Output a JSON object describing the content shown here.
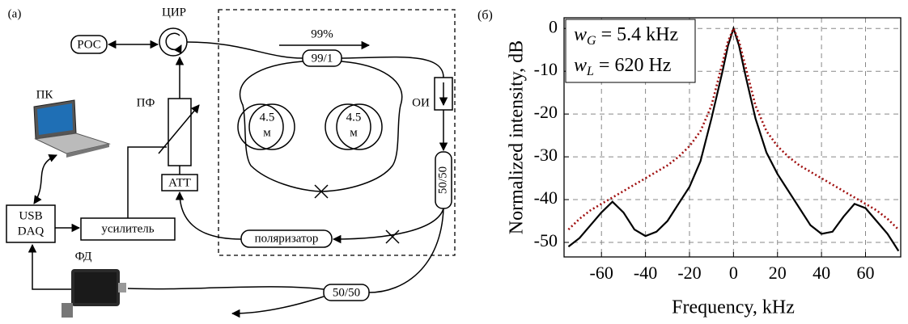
{
  "diagram": {
    "panel_label": "(a)",
    "ros": "РОС",
    "circulator": "ЦИР",
    "coupling": "99%",
    "coupler_99_1": "99/1",
    "coil_left": [
      "4.5",
      "м"
    ],
    "coil_right": [
      "4.5",
      "м"
    ],
    "isolator": "ОИ",
    "filter": "ПФ",
    "attenuator": "АТТ",
    "coupler_50_50_a": "50/50",
    "polarizer": "поляризатор",
    "pc": "ПК",
    "daq": [
      "USB",
      "DAQ"
    ],
    "amplifier": "усилитель",
    "photodetector": "ФД",
    "coupler_50_50_b": "50/50"
  },
  "chart_data": {
    "type": "line",
    "panel_label": "(б)",
    "x_label": "Frequency, kHz",
    "y_label": "Normalized intensity, dB",
    "x": [
      -75,
      -70,
      -65,
      -60,
      -55,
      -50,
      -45,
      -40,
      -35,
      -30,
      -25,
      -20,
      -15,
      -10,
      -5,
      -2.5,
      0,
      2.5,
      5,
      10,
      15,
      20,
      25,
      30,
      35,
      40,
      45,
      50,
      55,
      60,
      65,
      70,
      75
    ],
    "series": [
      {
        "color": "#000000",
        "style": "solid",
        "values": [
          -51,
          -49,
          -46,
          -43,
          -40.5,
          -43,
          -47,
          -48.5,
          -47.5,
          -45,
          -41,
          -37,
          -31,
          -21,
          -10,
          -4,
          0,
          -4,
          -10,
          -21,
          -29,
          -34,
          -38,
          -42,
          -46,
          -48,
          -47.5,
          -44,
          -41,
          -42,
          -45,
          -48,
          -52
        ]
      },
      {
        "color": "#a01010",
        "style": "dotted",
        "values": [
          -47,
          -44.5,
          -42.5,
          -41,
          -39.5,
          -38,
          -36.5,
          -35,
          -33.5,
          -32,
          -30,
          -27.5,
          -24,
          -18,
          -8,
          -3,
          0,
          -3,
          -8,
          -18,
          -24,
          -27.5,
          -30,
          -32,
          -33.5,
          -35,
          -36.5,
          -38,
          -39.5,
          -41,
          -42.5,
          -44.5,
          -47
        ]
      }
    ],
    "annotations": [
      {
        "symbol": "w",
        "subscript": "G",
        "text": "= 5.4 kHz"
      },
      {
        "symbol": "w",
        "subscript": "L",
        "text": "= 620 Hz"
      }
    ],
    "xlim": [
      -77,
      76
    ],
    "ylim": [
      -53.4,
      2.5
    ],
    "xticks": [
      -60,
      -40,
      -20,
      0,
      20,
      40,
      60
    ],
    "yticks": [
      0,
      -10,
      -20,
      -30,
      -40,
      -50
    ],
    "grid": true
  }
}
